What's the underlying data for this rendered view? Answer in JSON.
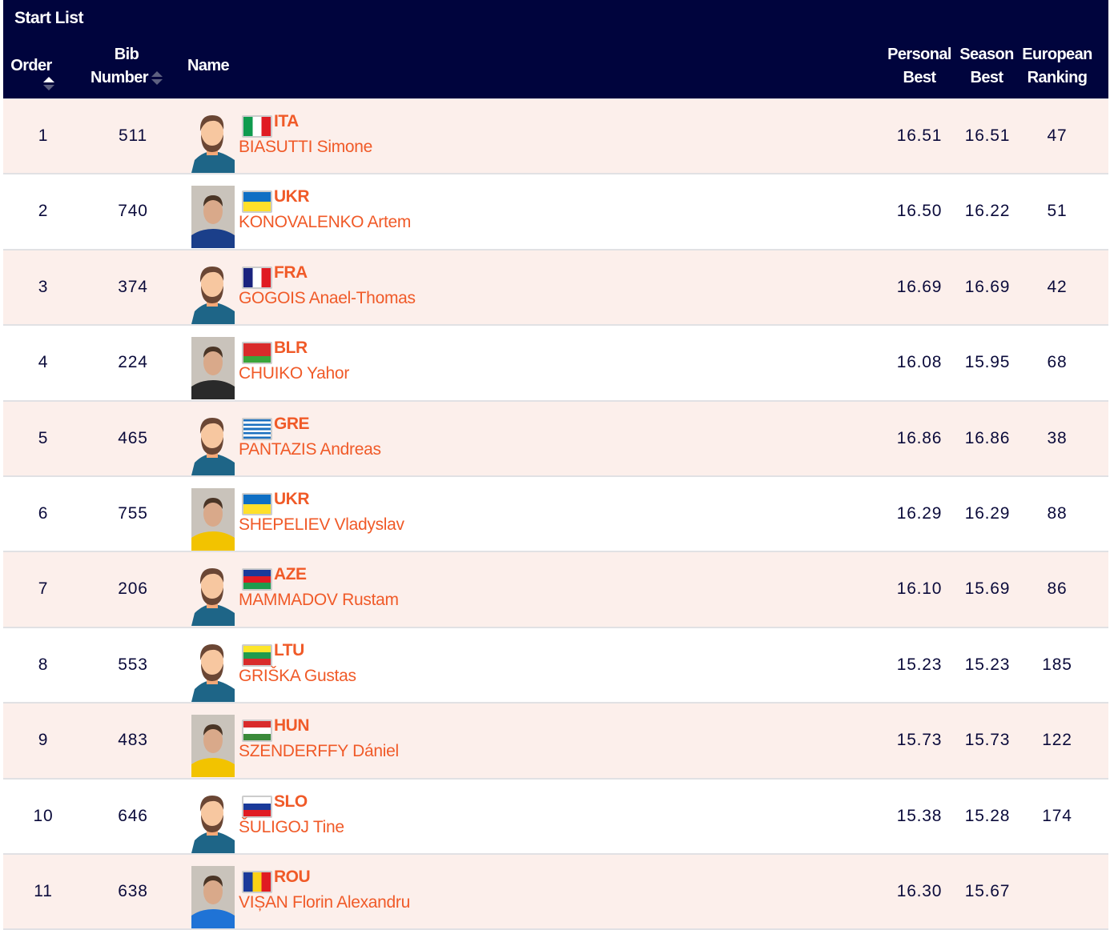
{
  "header": {
    "title": "Start List",
    "columns": {
      "order": "Order",
      "bib_1": "Bib",
      "bib_2": "Number",
      "name": "Name",
      "pb_1": "Personal",
      "pb_2": "Best",
      "sb_1": "Season",
      "sb_2": "Best",
      "er_1": "European",
      "er_2": "Ranking"
    }
  },
  "colors": {
    "header_bg": "#00043d",
    "accent": "#f05a28",
    "row_alt": "#fcefeb"
  },
  "rows": [
    {
      "order": "1",
      "bib": "511",
      "country": "ITA",
      "name": "BIASUTTI Simone",
      "pb": "16.51",
      "sb": "16.51",
      "rank": "47",
      "photo": false,
      "flag": {
        "dir": "v",
        "colors": [
          "#0f9b4e",
          "#ffffff",
          "#e01b22"
        ]
      }
    },
    {
      "order": "2",
      "bib": "740",
      "country": "UKR",
      "name": "KONOVALENKO Artem",
      "pb": "16.50",
      "sb": "16.22",
      "rank": "51",
      "photo": true,
      "flag": {
        "dir": "h",
        "colors": [
          "#0f6fc4",
          "#ffe02a"
        ]
      }
    },
    {
      "order": "3",
      "bib": "374",
      "country": "FRA",
      "name": "GOGOIS Anael-Thomas",
      "pb": "16.69",
      "sb": "16.69",
      "rank": "42",
      "photo": false,
      "flag": {
        "dir": "v",
        "colors": [
          "#1a237e",
          "#ffffff",
          "#e01b22"
        ]
      }
    },
    {
      "order": "4",
      "bib": "224",
      "country": "BLR",
      "name": "CHUIKO Yahor",
      "pb": "16.08",
      "sb": "15.95",
      "rank": "68",
      "photo": true,
      "flag": {
        "dir": "h",
        "colors": [
          "#d92b2b",
          "#d92b2b",
          "#3aa53a"
        ]
      }
    },
    {
      "order": "5",
      "bib": "465",
      "country": "GRE",
      "name": "PANTAZIS Andreas",
      "pb": "16.86",
      "sb": "16.86",
      "rank": "38",
      "photo": false,
      "flag": {
        "dir": "h",
        "colors": [
          "#1a6fbf",
          "#ffffff",
          "#1a6fbf",
          "#ffffff",
          "#1a6fbf",
          "#ffffff",
          "#1a6fbf",
          "#ffffff",
          "#1a6fbf"
        ]
      }
    },
    {
      "order": "6",
      "bib": "755",
      "country": "UKR",
      "name": "SHEPELIEV Vladyslav",
      "pb": "16.29",
      "sb": "16.29",
      "rank": "88",
      "photo": true,
      "flag": {
        "dir": "h",
        "colors": [
          "#0f6fc4",
          "#ffe02a"
        ]
      }
    },
    {
      "order": "7",
      "bib": "206",
      "country": "AZE",
      "name": "MAMMADOV Rustam",
      "pb": "16.10",
      "sb": "15.69",
      "rank": "86",
      "photo": false,
      "flag": {
        "dir": "h",
        "colors": [
          "#1a3a9a",
          "#e01b22",
          "#1f9b4e"
        ]
      }
    },
    {
      "order": "8",
      "bib": "553",
      "country": "LTU",
      "name": "GRIŠKA Gustas",
      "pb": "15.23",
      "sb": "15.23",
      "rank": "185",
      "photo": false,
      "flag": {
        "dir": "h",
        "colors": [
          "#fde62a",
          "#1f9b4e",
          "#d92b2b"
        ]
      }
    },
    {
      "order": "9",
      "bib": "483",
      "country": "HUN",
      "name": "SZENDERFFY Dániel",
      "pb": "15.73",
      "sb": "15.73",
      "rank": "122",
      "photo": true,
      "flag": {
        "dir": "h",
        "colors": [
          "#d92b2b",
          "#ffffff",
          "#3a8a3a"
        ]
      }
    },
    {
      "order": "10",
      "bib": "646",
      "country": "SLO",
      "name": "ŠULIGOJ Tine",
      "pb": "15.38",
      "sb": "15.28",
      "rank": "174",
      "photo": false,
      "flag": {
        "dir": "h",
        "colors": [
          "#ffffff",
          "#1a3a9a",
          "#e01b22"
        ]
      }
    },
    {
      "order": "11",
      "bib": "638",
      "country": "ROU",
      "name": "VIȘAN Florin Alexandru",
      "pb": "16.30",
      "sb": "15.67",
      "rank": "",
      "photo": true,
      "flag": {
        "dir": "v",
        "colors": [
          "#1a3a9a",
          "#fcd116",
          "#e01b22"
        ]
      }
    }
  ]
}
